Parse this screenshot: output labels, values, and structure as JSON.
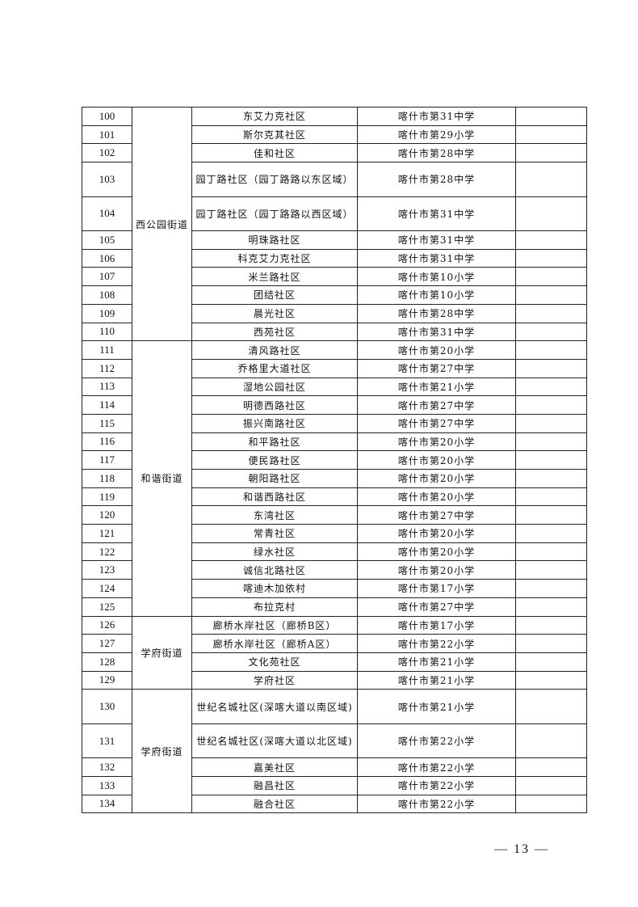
{
  "table": {
    "groups": [
      {
        "street": "西公园街道",
        "rows": [
          {
            "no": "100",
            "community": "东艾力克社区",
            "school": "喀什市第31中学",
            "tall": false
          },
          {
            "no": "101",
            "community": "斯尔克其社区",
            "school": "喀什市第29小学",
            "tall": false
          },
          {
            "no": "102",
            "community": "佳和社区",
            "school": "喀什市第28中学",
            "tall": false
          },
          {
            "no": "103",
            "community": "园丁路社区（园丁路路以东区域）",
            "school": "喀什市第28中学",
            "tall": true
          },
          {
            "no": "104",
            "community": "园丁路社区（园丁路路以西区域）",
            "school": "喀什市第31中学",
            "tall": true
          },
          {
            "no": "105",
            "community": "明珠路社区",
            "school": "喀什市第31中学",
            "tall": false
          },
          {
            "no": "106",
            "community": "科克艾力克社区",
            "school": "喀什市第31中学",
            "tall": false
          },
          {
            "no": "107",
            "community": "米兰路社区",
            "school": "喀什市第10小学",
            "tall": false
          },
          {
            "no": "108",
            "community": "团结社区",
            "school": "喀什市第10小学",
            "tall": false
          },
          {
            "no": "109",
            "community": "晨光社区",
            "school": "喀什市第28中学",
            "tall": false
          },
          {
            "no": "110",
            "community": "西苑社区",
            "school": "喀什市第31中学",
            "tall": false
          }
        ]
      },
      {
        "street": "和谐街道",
        "rows": [
          {
            "no": "111",
            "community": "清风路社区",
            "school": "喀什市第20小学",
            "tall": false
          },
          {
            "no": "112",
            "community": "乔格里大道社区",
            "school": "喀什市第27中学",
            "tall": false
          },
          {
            "no": "113",
            "community": "湿地公园社区",
            "school": "喀什市第21小学",
            "tall": false
          },
          {
            "no": "114",
            "community": "明德西路社区",
            "school": "喀什市第27中学",
            "tall": false
          },
          {
            "no": "115",
            "community": "振兴南路社区",
            "school": "喀什市第27中学",
            "tall": false
          },
          {
            "no": "116",
            "community": "和平路社区",
            "school": "喀什市第20小学",
            "tall": false
          },
          {
            "no": "117",
            "community": "便民路社区",
            "school": "喀什市第20小学",
            "tall": false
          },
          {
            "no": "118",
            "community": "朝阳路社区",
            "school": "喀什市第20小学",
            "tall": false
          },
          {
            "no": "119",
            "community": "和谐西路社区",
            "school": "喀什市第20小学",
            "tall": false
          },
          {
            "no": "120",
            "community": "东湾社区",
            "school": "喀什市第27中学",
            "tall": false
          },
          {
            "no": "121",
            "community": "常青社区",
            "school": "喀什市第20小学",
            "tall": false
          },
          {
            "no": "122",
            "community": "绿水社区",
            "school": "喀什市第20小学",
            "tall": false
          },
          {
            "no": "123",
            "community": "诚信北路社区",
            "school": "喀什市第20小学",
            "tall": false
          },
          {
            "no": "124",
            "community": "喀迪木加依村",
            "school": "喀什市第17小学",
            "tall": false
          },
          {
            "no": "125",
            "community": "布拉克村",
            "school": "喀什市第27中学",
            "tall": false
          }
        ]
      },
      {
        "street": "学府街道",
        "rows": [
          {
            "no": "126",
            "community": "廊桥水岸社区（廊桥B区）",
            "school": "喀什市第17小学",
            "tall": false
          },
          {
            "no": "127",
            "community": "廊桥水岸社区（廊桥A区）",
            "school": "喀什市第22小学",
            "tall": false
          },
          {
            "no": "128",
            "community": "文化苑社区",
            "school": "喀什市第21小学",
            "tall": false
          },
          {
            "no": "129",
            "community": "学府社区",
            "school": "喀什市第21小学",
            "tall": false
          }
        ]
      },
      {
        "street": "学府街道",
        "rows": [
          {
            "no": "130",
            "community": "世纪名城社区(深喀大道以南区域)",
            "school": "喀什市第21小学",
            "tall": true
          },
          {
            "no": "131",
            "community": "世纪名城社区(深喀大道以北区域)",
            "school": "喀什市第22小学",
            "tall": true
          },
          {
            "no": "132",
            "community": "嘉美社区",
            "school": "喀什市第22小学",
            "tall": false
          },
          {
            "no": "133",
            "community": "融昌社区",
            "school": "喀什市第22小学",
            "tall": false
          },
          {
            "no": "134",
            "community": "融合社区",
            "school": "喀什市第22小学",
            "tall": false
          }
        ]
      }
    ]
  },
  "footer": {
    "page_number": "— 13 —"
  }
}
